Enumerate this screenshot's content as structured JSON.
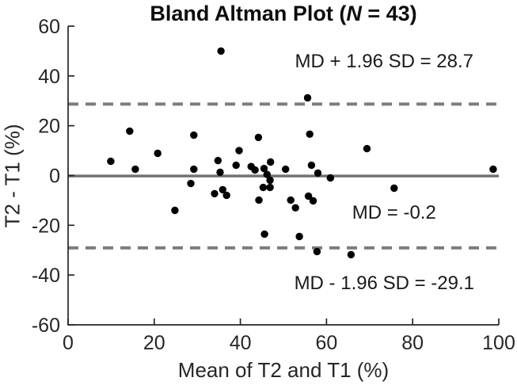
{
  "figure": {
    "title": {
      "prefix": "Bland Altman Plot (",
      "n": "N",
      "suffix": " = 43)"
    },
    "colors": {
      "background": "#ffffff",
      "point": "#000000",
      "line_solid": "#737373",
      "line_dashed": "#7d7d7d",
      "axis": "#262626",
      "text": "#1a1a1a"
    }
  },
  "chart_data": {
    "type": "scatter",
    "title": "Bland Altman Plot (N = 43)",
    "xlabel": "Mean of T2 and T1 (%)",
    "ylabel": "T2 - T1 (%)",
    "xlim": [
      0,
      100
    ],
    "ylim": [
      -60,
      60
    ],
    "xticks": [
      0,
      20,
      40,
      60,
      80,
      100
    ],
    "yticks": [
      -60,
      -40,
      -20,
      0,
      20,
      40,
      60
    ],
    "grid": false,
    "legend": "none",
    "n": 43,
    "points": [
      [
        14.3,
        17.8
      ],
      [
        29.2,
        16.2
      ],
      [
        20.8,
        8.9
      ],
      [
        9.9,
        5.7
      ],
      [
        15.6,
        2.5
      ],
      [
        29.2,
        2.5
      ],
      [
        35.5,
        50.0
      ],
      [
        55.6,
        31.2
      ],
      [
        56.1,
        16.6
      ],
      [
        44.2,
        15.3
      ],
      [
        39.7,
        10.0
      ],
      [
        34.8,
        6.0
      ],
      [
        39.0,
        4.1
      ],
      [
        47.0,
        5.4
      ],
      [
        42.5,
        3.6
      ],
      [
        43.4,
        2.2
      ],
      [
        45.5,
        2.8
      ],
      [
        50.5,
        2.5
      ],
      [
        56.5,
        4.1
      ],
      [
        58.0,
        1.0
      ],
      [
        69.4,
        10.8
      ],
      [
        98.7,
        2.5
      ],
      [
        28.5,
        -3.2
      ],
      [
        24.8,
        -14.0
      ],
      [
        34.0,
        -7.3
      ],
      [
        35.9,
        -5.7
      ],
      [
        36.8,
        -8.0
      ],
      [
        35.3,
        1.3
      ],
      [
        46.2,
        0.4
      ],
      [
        46.9,
        -1.9
      ],
      [
        45.3,
        -4.8
      ],
      [
        46.9,
        -4.8
      ],
      [
        44.3,
        -9.9
      ],
      [
        51.7,
        -9.9
      ],
      [
        52.8,
        -13.0
      ],
      [
        55.8,
        -8.3
      ],
      [
        56.9,
        -10.2
      ],
      [
        60.9,
        -1.0
      ],
      [
        45.6,
        -23.6
      ],
      [
        53.7,
        -24.5
      ],
      [
        57.8,
        -30.6
      ],
      [
        65.7,
        -31.8
      ],
      [
        75.7,
        -5.1
      ]
    ],
    "reference_lines": [
      {
        "value": 28.7,
        "style": "dashed",
        "label": "MD + 1.96 SD = 28.7"
      },
      {
        "value": -0.2,
        "style": "solid",
        "label": "MD = -0.2"
      },
      {
        "value": -29.1,
        "style": "dashed",
        "label": "MD - 1.96 SD = -29.1"
      }
    ],
    "annotations": [
      {
        "text": "MD + 1.96 SD = 28.7",
        "x": 73.4,
        "y": 46.0
      },
      {
        "text": "MD = -0.2",
        "x": 75.7,
        "y": -14.8
      },
      {
        "text": "MD - 1.96 SD = -29.1",
        "x": 73.4,
        "y": -43.1
      }
    ]
  }
}
